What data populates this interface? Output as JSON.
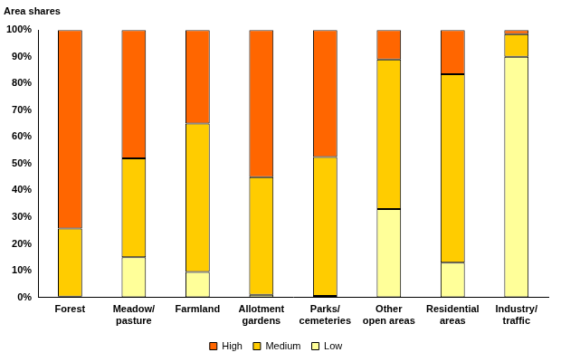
{
  "chart_data": {
    "type": "bar",
    "stacked": true,
    "grid": false,
    "legend": "bottom",
    "y_label": "Area shares",
    "categories": [
      "Forest",
      "Meadow/pasture",
      "Farmland",
      "Allotment gardens",
      "Parks/cemeteries",
      "Other open areas",
      "Residential areas",
      "Industry/traffic"
    ],
    "series": [
      {
        "name": "Low",
        "color": "#ffff99",
        "values": [
          0.3,
          15,
          9.5,
          1,
          0.5,
          33,
          13,
          90
        ]
      },
      {
        "name": "Medium",
        "color": "#ffcc00",
        "values": [
          25.5,
          37,
          55.5,
          44,
          52,
          56,
          70.5,
          8.5
        ]
      },
      {
        "name": "High",
        "color": "#ff6600",
        "values": [
          74.2,
          48,
          35,
          55,
          47.5,
          11,
          16.5,
          1.5
        ]
      }
    ],
    "ylim": [
      0,
      100
    ],
    "yticks": [
      {
        "value": 0,
        "label": "0%"
      },
      {
        "value": 10,
        "label": "10%"
      },
      {
        "value": 20,
        "label": "20%"
      },
      {
        "value": 30,
        "label": "30%"
      },
      {
        "value": 40,
        "label": "40%"
      },
      {
        "value": 50,
        "label": "50%"
      },
      {
        "value": 60,
        "label": "60%"
      },
      {
        "value": 70,
        "label": "70%"
      },
      {
        "value": 80,
        "label": "80%"
      },
      {
        "value": 90,
        "label": "90%"
      },
      {
        "value": 100,
        "label": "100%"
      }
    ]
  }
}
